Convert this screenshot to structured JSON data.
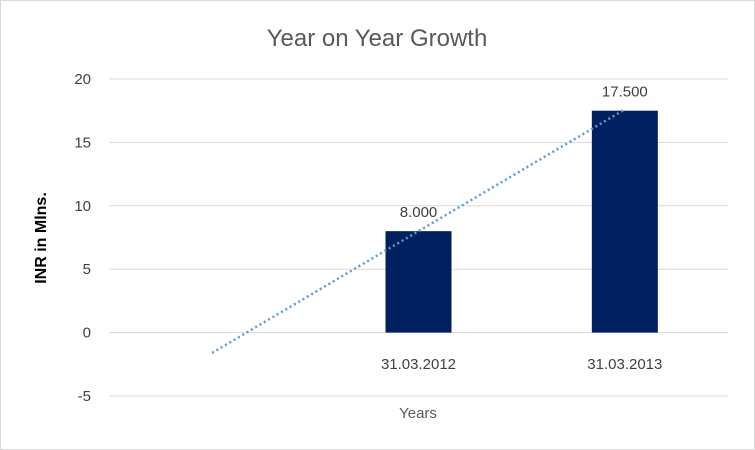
{
  "chart_data": {
    "type": "bar",
    "title": "Year on Year Growth",
    "xlabel": "Years",
    "ylabel": "INR in Mlns.",
    "categories": [
      "",
      "31.03.2012",
      "31.03.2013"
    ],
    "values": [
      null,
      8.0,
      17.5
    ],
    "data_labels": [
      "",
      "8.000",
      "17.500"
    ],
    "ylim": [
      -5,
      20
    ],
    "yticks": [
      -5,
      0,
      5,
      10,
      15,
      20
    ],
    "grid": true,
    "legend": "none",
    "trendline": {
      "type": "linear",
      "style": "dotted",
      "start": {
        "category_index": 0,
        "value": -1.6
      },
      "end": {
        "category_index": 2,
        "value": 17.6
      }
    },
    "colors": {
      "bar": "#002060",
      "trendline": "#5b9bd5",
      "grid": "#d9d9d9"
    }
  }
}
